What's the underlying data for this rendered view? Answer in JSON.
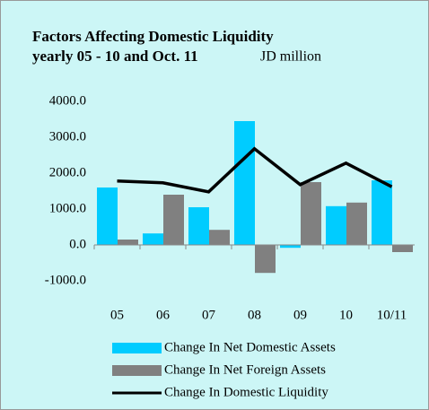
{
  "chart_data": {
    "type": "bar-line",
    "title": [
      "Factors Affecting Domestic Liquidity",
      "yearly 05 - 10 and Oct. 11"
    ],
    "subtitle": "JD million",
    "categories": [
      "05",
      "06",
      "07",
      "08",
      "09",
      "10",
      "10/11"
    ],
    "series": [
      {
        "name": "Change In Net Domestic Assets",
        "type": "bar",
        "color": "#00ccff",
        "values": [
          1600,
          320,
          1050,
          3450,
          -80,
          1080,
          1800
        ]
      },
      {
        "name": "Change In Net Foreign Assets",
        "type": "bar",
        "color": "#808080",
        "values": [
          150,
          1400,
          420,
          -780,
          1750,
          1180,
          -200
        ]
      },
      {
        "name": "Change In Domestic Liquidity",
        "type": "line",
        "color": "#000000",
        "values": [
          1780,
          1730,
          1480,
          2680,
          1680,
          2280,
          1620
        ]
      }
    ],
    "ylim": [
      -1000,
      4000
    ],
    "yticks": [
      {
        "value": -1000,
        "label": "-1000.0"
      },
      {
        "value": 0,
        "label": "0.0"
      },
      {
        "value": 1000,
        "label": "1000.0"
      },
      {
        "value": 2000,
        "label": "2000.0"
      },
      {
        "value": 3000,
        "label": "3000.0"
      },
      {
        "value": 4000,
        "label": "4000.0"
      }
    ]
  }
}
